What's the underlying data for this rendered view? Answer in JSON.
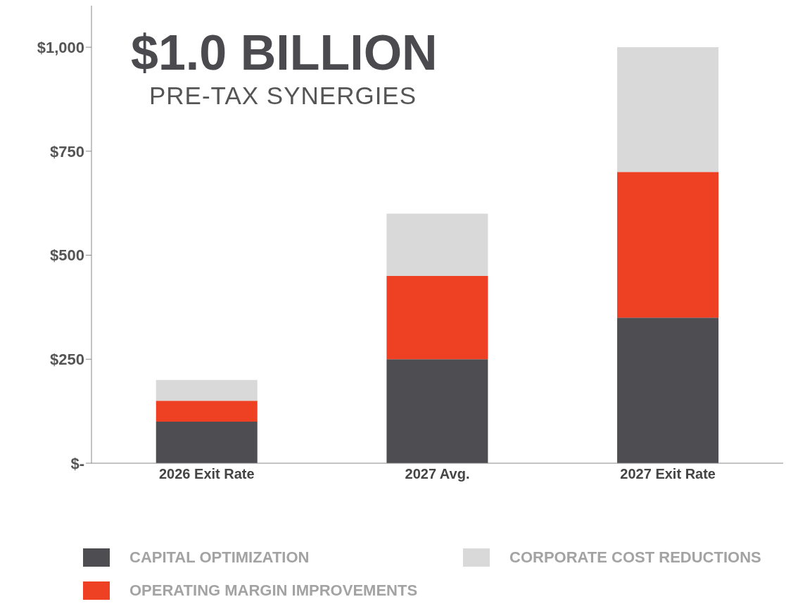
{
  "chart_data": {
    "type": "bar",
    "stacked": true,
    "title": "$1.0 BILLION",
    "subtitle": "PRE-TAX SYNERGIES",
    "categories": [
      "2026 Exit Rate",
      "2027 Avg.",
      "2027 Exit Rate"
    ],
    "series": [
      {
        "name": "CAPITAL OPTIMIZATION",
        "color": "#4d4d52",
        "values": [
          100,
          250,
          350
        ]
      },
      {
        "name": "OPERATING MARGIN IMPROVEMENTS",
        "color": "#ee4023",
        "values": [
          50,
          200,
          350
        ]
      },
      {
        "name": "CORPORATE COST REDUCTIONS",
        "color": "#d9d9d9",
        "values": [
          50,
          150,
          300
        ]
      }
    ],
    "ylim": [
      0,
      1100
    ],
    "yticks": [
      {
        "value": 0,
        "label": "$-"
      },
      {
        "value": 250,
        "label": "$250"
      },
      {
        "value": 500,
        "label": "$500"
      },
      {
        "value": 750,
        "label": "$750"
      },
      {
        "value": 1000,
        "label": "$1,000"
      }
    ],
    "grid": false,
    "legend": "bottom"
  }
}
